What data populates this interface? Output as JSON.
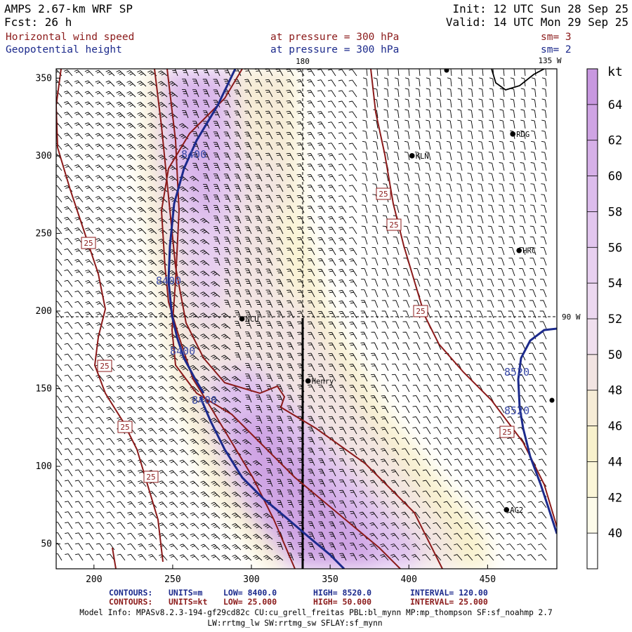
{
  "header": {
    "model": "AMPS 2.67-km WRF SP",
    "forecast": "Fcst:   26 h",
    "init": "Init: 12 UTC Sun 28 Sep 25",
    "valid": "Valid: 14 UTC Mon 29 Sep 25",
    "field1": {
      "name": "Horizontal wind speed",
      "level": "at pressure =  300 hPa",
      "smooth": "sm= 3"
    },
    "field2": {
      "name": "Geopotential height",
      "level": "at pressure =  300 hPa",
      "smooth": "sm= 2"
    }
  },
  "map": {
    "top_labels": {
      "lon_180": "180",
      "lon_135w": "135 W"
    },
    "right_labels": {
      "lon_90w": "90 W"
    },
    "x_ticks": [
      200,
      250,
      300,
      350,
      400,
      450
    ],
    "y_ticks": [
      50,
      100,
      150,
      200,
      250,
      300,
      350
    ],
    "x_range": [
      176,
      494
    ],
    "y_range": [
      34,
      356
    ],
    "stations": [
      {
        "name": "KLN",
        "x": 402,
        "y": 300
      },
      {
        "name": "RDG",
        "x": 466,
        "y": 314
      },
      {
        "name": "HRC",
        "x": 470,
        "y": 239
      },
      {
        "name": "NCU",
        "x": 294,
        "y": 195
      },
      {
        "name": "Henry",
        "x": 336,
        "y": 155
      },
      {
        "name": "AG2",
        "x": 462,
        "y": 72
      }
    ],
    "height_labels": [
      "8400",
      "8400",
      "8400",
      "8400",
      "8520",
      "8520"
    ],
    "speed_labels": [
      "25",
      "25",
      "25",
      "25",
      "25",
      "25",
      "25",
      "25"
    ]
  },
  "colorbar": {
    "unit": "kt",
    "labels": [
      "64",
      "62",
      "60",
      "58",
      "56",
      "54",
      "52",
      "50",
      "48",
      "46",
      "44",
      "42",
      "40"
    ],
    "colors": [
      "#c898e0",
      "#cfa4e4",
      "#d6b0e8",
      "#dcbcec",
      "#e2c6ee",
      "#e8d0f0",
      "#ecd8f0",
      "#f0dfee",
      "#f2e4e2",
      "#f6ecd6",
      "#f8f1cc",
      "#fbf6d8",
      "#fdfbea",
      "#ffffff"
    ]
  },
  "footer": {
    "contours_blue_label": "CONTOURS:",
    "contours_blue_units": "UNITS=m",
    "contours_blue_low": "LOW=  8400.0",
    "contours_blue_high": "HIGH=  8520.0",
    "contours_blue_interval": "INTERVAL=   120.00",
    "contours_red_label": "CONTOURS:",
    "contours_red_units": "UNITS=kt",
    "contours_red_low": "LOW=  25.000",
    "contours_red_high": "HIGH=  50.000",
    "contours_red_interval": "INTERVAL=   25.000",
    "model_info_1": "Model Info: MPASv8.2.3-194-gf29cd82c CU:cu_grell_freitas PBL:bl_mynn MP:mp_thompson SF:sf_noahmp 2.7",
    "model_info_2": "LW:rrtmg_lw SW:rrtmg_sw SFLAY:sf_mynn"
  }
}
